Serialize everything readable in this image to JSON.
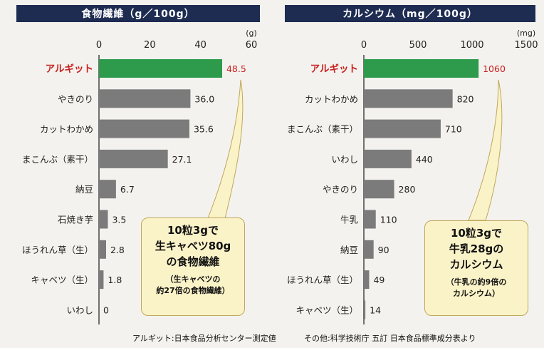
{
  "colors": {
    "highlight_bar": "#2d9a4c",
    "normal_bar": "#7b7b7b",
    "title_bg": "#1e2c52",
    "highlight_text": "#c8201e",
    "callout_bg": "#fbf3c8"
  },
  "chart_data": [
    {
      "type": "bar",
      "orientation": "horizontal",
      "title": "食物繊維（g／100g）",
      "unit": "(g)",
      "xlim": [
        0,
        60
      ],
      "ticks": [
        "0",
        "20",
        "40",
        "60"
      ],
      "tick_values": [
        0,
        20,
        40,
        60
      ],
      "categories": [
        "アルギット",
        "やきのり",
        "カットわかめ",
        "まこんぶ（素干）",
        "納豆",
        "石焼き芋",
        "ほうれん草（生）",
        "キャベツ（生）",
        "いわし"
      ],
      "values": [
        48.5,
        36.0,
        35.6,
        27.1,
        6.7,
        3.5,
        2.8,
        1.8,
        0
      ],
      "value_labels": [
        "48.5",
        "36.0",
        "35.6",
        "27.1",
        "6.7",
        "3.5",
        "2.8",
        "1.8",
        "0"
      ],
      "highlight_index": 0,
      "callout": {
        "lines": [
          "10粒3gで",
          "生キャベツ80g",
          "の食物繊維"
        ],
        "sub_lines": [
          "（生キャベツの",
          "約27倍の食物繊維）"
        ]
      }
    },
    {
      "type": "bar",
      "orientation": "horizontal",
      "title": "カルシウム（mg／100g）",
      "unit": "(mg)",
      "xlim": [
        0,
        1500
      ],
      "ticks": [
        "0",
        "500",
        "1000",
        "1500"
      ],
      "tick_values": [
        0,
        500,
        1000,
        1500
      ],
      "categories": [
        "アルギット",
        "カットわかめ",
        "まこんぶ（素干）",
        "いわし",
        "やきのり",
        "牛乳",
        "納豆",
        "ほうれん草（生）",
        "キャベツ（生）"
      ],
      "values": [
        1060,
        820,
        710,
        440,
        280,
        110,
        90,
        49,
        14
      ],
      "value_labels": [
        "1060",
        "820",
        "710",
        "440",
        "280",
        "110",
        "90",
        "49",
        "14"
      ],
      "highlight_index": 0,
      "callout": {
        "lines": [
          "10粒3gで",
          "牛乳28gの",
          "カルシウム"
        ],
        "sub_lines": [
          "（牛乳の約9倍の",
          "カルシウム）"
        ]
      }
    }
  ],
  "footnotes": {
    "left": "アルギット:日本食品分析センター測定値",
    "right": "その他:科学技術庁 五訂 日本食品標準成分表より"
  }
}
